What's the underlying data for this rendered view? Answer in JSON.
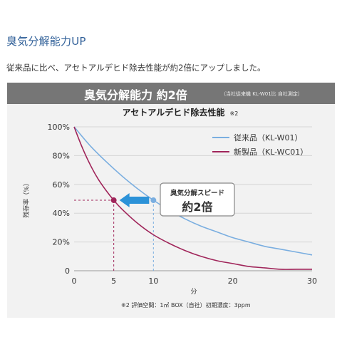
{
  "heading": "臭気分解能力UP",
  "intro": "従来品に比べ、アセトアルデヒド除去性能が約2倍にアップしました。",
  "banner": {
    "title": "臭気分解能力 約2倍",
    "note": "（当社従来機 KL-W01比 自社測定）"
  },
  "footnote": "※2 評価空間：1㎥ BOX（自社）初期濃度：3ppm",
  "callout": {
    "line1": "臭気分解スピード",
    "line2": "約2倍"
  },
  "colors": {
    "old": "#7aaee0",
    "new": "#a0255a",
    "arrow": "#2c92d8",
    "banner": "#767676"
  },
  "chart_data": {
    "type": "line",
    "title": "アセトアルデヒド除去性能",
    "title_note": "※2",
    "xlabel": "分",
    "ylabel": "残存率（%）",
    "xlim": [
      0,
      30
    ],
    "ylim": [
      0,
      100
    ],
    "x_ticks": [
      "0",
      "5",
      "10",
      "20",
      "30"
    ],
    "x_tick_values": [
      0,
      5,
      10,
      20,
      30
    ],
    "y_ticks": [
      "0",
      "20%",
      "40%",
      "60%",
      "80%",
      "100%"
    ],
    "y_tick_values": [
      0,
      20,
      40,
      60,
      80,
      100
    ],
    "grid": "horizontal",
    "legend_position": "top-right",
    "series": [
      {
        "name": "従来品（KL-W01）",
        "color": "#7aaee0",
        "x": [
          0,
          2,
          4,
          6,
          8,
          10,
          12,
          14,
          16,
          18,
          20,
          22,
          24,
          26,
          28,
          30
        ],
        "y": [
          100,
          87,
          76,
          66,
          57,
          49,
          42,
          36,
          31,
          27,
          23,
          20,
          17,
          15,
          13,
          11
        ]
      },
      {
        "name": "新製品（KL-WC01）",
        "color": "#a0255a",
        "x": [
          0,
          1,
          2,
          3,
          4,
          5,
          6,
          8,
          10,
          12,
          14,
          16,
          18,
          20,
          22,
          24,
          26,
          28,
          30
        ],
        "y": [
          100,
          86,
          74,
          64,
          56,
          49,
          43,
          33,
          25,
          19,
          14,
          10,
          7,
          5,
          3,
          2,
          1,
          1,
          1
        ]
      }
    ],
    "markers": [
      {
        "series": "従来品（KL-W01）",
        "x": 10,
        "y": 49
      },
      {
        "series": "新製品（KL-WC01）",
        "x": 5,
        "y": 49
      }
    ]
  }
}
